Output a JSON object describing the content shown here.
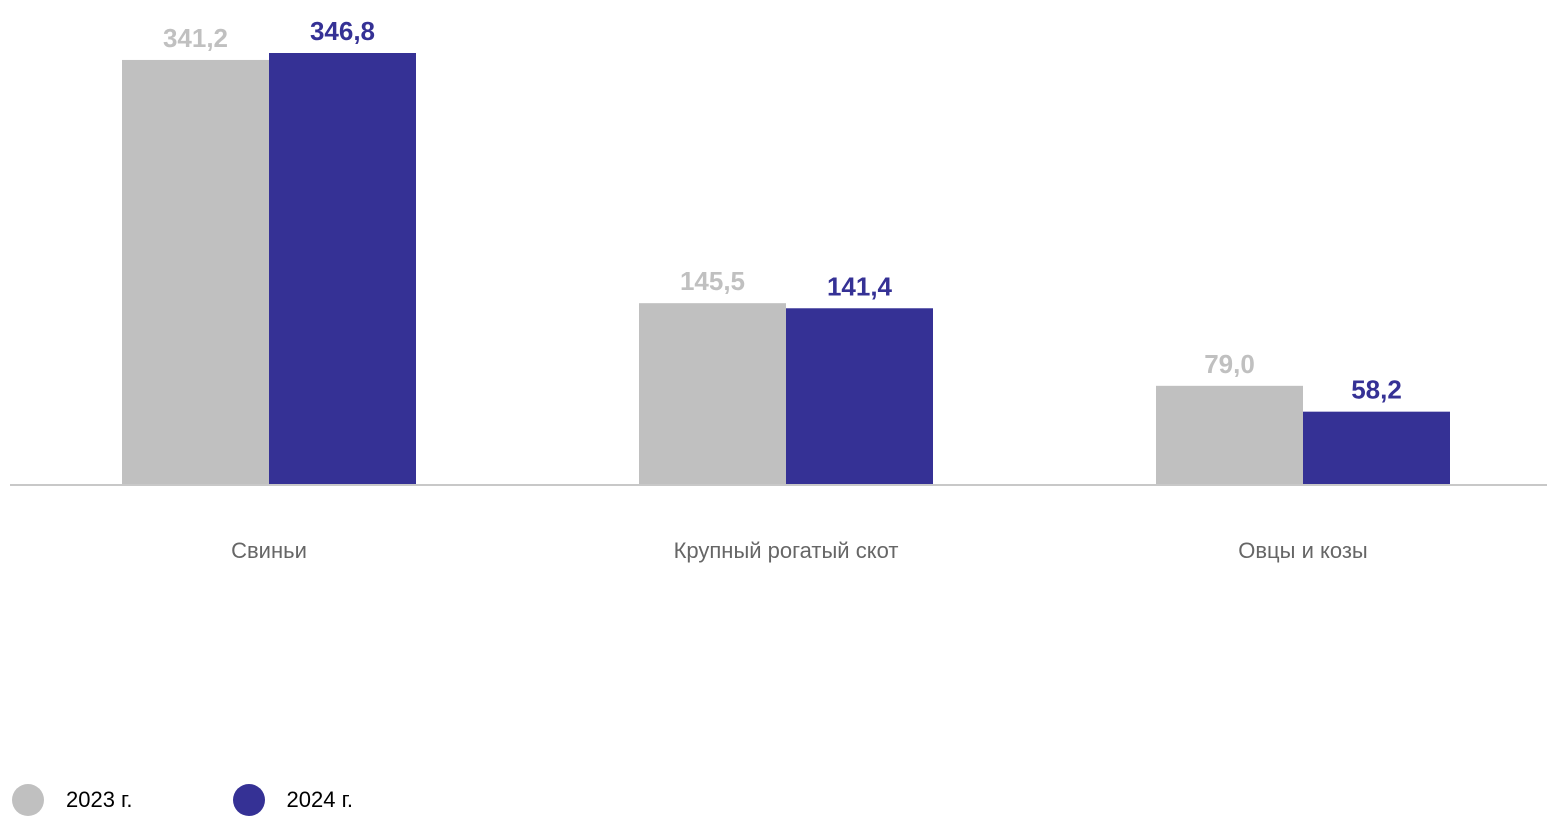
{
  "colors": {
    "series_2023": "#c0c0c0",
    "series_2024": "#353195",
    "axis": "#c8c8c8",
    "category_text": "#666666"
  },
  "chart_data": {
    "type": "bar",
    "categories": [
      "Свиньи",
      "Крупный рогатый скот",
      "Овцы и козы"
    ],
    "series": [
      {
        "name": "2023 г.",
        "values": [
          341.2,
          145.5,
          79.0
        ],
        "labels": [
          "341,2",
          "145,5",
          "79,0"
        ]
      },
      {
        "name": "2024 г.",
        "values": [
          346.8,
          141.4,
          58.2
        ],
        "labels": [
          "346,8",
          "141,4",
          "58,2"
        ]
      }
    ],
    "ylim": [
      0,
      346.8
    ],
    "grid": false,
    "legend_position": "bottom-left"
  }
}
